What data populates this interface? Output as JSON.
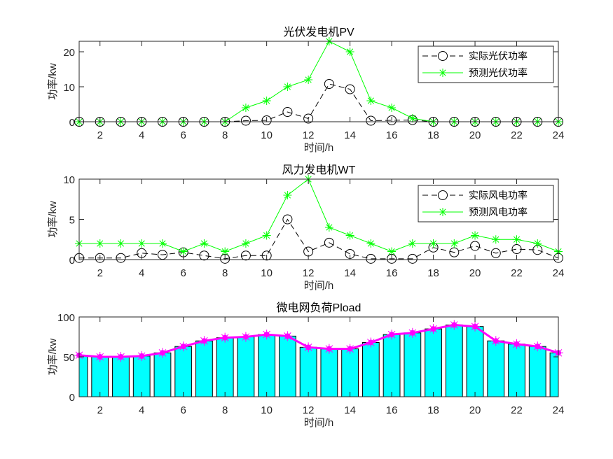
{
  "chart_data": [
    {
      "type": "line",
      "title": "光伏发电机PV",
      "xlabel": "时间/h",
      "ylabel": "功率/kw",
      "xlim": [
        1,
        24
      ],
      "ylim": [
        0,
        23
      ],
      "xticks": [
        2,
        4,
        6,
        8,
        10,
        12,
        14,
        16,
        18,
        20,
        22,
        24
      ],
      "yticks": [
        0,
        10,
        20
      ],
      "legend_position": "top-right",
      "x": [
        1,
        2,
        3,
        4,
        5,
        6,
        7,
        8,
        9,
        10,
        11,
        12,
        13,
        14,
        15,
        16,
        17,
        18,
        19,
        20,
        21,
        22,
        23,
        24
      ],
      "series": [
        {
          "name": "实际光伏功率",
          "style": "dashed-circle",
          "color": "#000000",
          "values": [
            0,
            0,
            0,
            0,
            0,
            0,
            0,
            0,
            0.3,
            0.4,
            2.8,
            0.9,
            10.8,
            9.3,
            0.3,
            0.4,
            0.5,
            0,
            0,
            0,
            0,
            0,
            0,
            0
          ]
        },
        {
          "name": "预测光伏功率",
          "style": "solid-star",
          "color": "#00ff00",
          "values": [
            0,
            0,
            0,
            0,
            0,
            0,
            0,
            0,
            4,
            6,
            10,
            12,
            23,
            20,
            6,
            4,
            1,
            0,
            0,
            0,
            0,
            0,
            0,
            0
          ]
        }
      ]
    },
    {
      "type": "line",
      "title": "风力发电机WT",
      "xlabel": "时间/h",
      "ylabel": "功率/kw",
      "xlim": [
        1,
        24
      ],
      "ylim": [
        0,
        10
      ],
      "xticks": [
        2,
        4,
        6,
        8,
        10,
        12,
        14,
        16,
        18,
        20,
        22,
        24
      ],
      "yticks": [
        0,
        5,
        10
      ],
      "legend_position": "top-right",
      "x": [
        1,
        2,
        3,
        4,
        5,
        6,
        7,
        8,
        9,
        10,
        11,
        12,
        13,
        14,
        15,
        16,
        17,
        18,
        19,
        20,
        21,
        22,
        23,
        24
      ],
      "series": [
        {
          "name": "实际风电功率",
          "style": "dashed-circle",
          "color": "#000000",
          "values": [
            0.2,
            0.2,
            0.2,
            0.8,
            0.6,
            0.9,
            0.5,
            0.1,
            0.5,
            0.5,
            5,
            1,
            2.1,
            0.7,
            0.1,
            0.1,
            0.1,
            1.5,
            0.9,
            1.7,
            0.8,
            1.3,
            1.2,
            0.2
          ]
        },
        {
          "name": "预测风电功率",
          "style": "solid-star",
          "color": "#00ff00",
          "values": [
            2,
            2,
            2,
            2,
            2,
            1,
            2,
            1,
            2,
            3,
            8,
            10,
            4,
            3,
            2,
            1,
            2,
            2,
            2,
            3,
            2.5,
            2.5,
            2,
            1
          ]
        }
      ]
    },
    {
      "type": "bar",
      "title": "微电网负荷Pload",
      "xlabel": "时间/h",
      "ylabel": "功率/kw",
      "xlim": [
        1,
        24
      ],
      "ylim": [
        0,
        100
      ],
      "xticks": [
        2,
        4,
        6,
        8,
        10,
        12,
        14,
        16,
        18,
        20,
        22,
        24
      ],
      "yticks": [
        0,
        50,
        100
      ],
      "x": [
        1,
        2,
        3,
        4,
        5,
        6,
        7,
        8,
        9,
        10,
        11,
        12,
        13,
        14,
        15,
        16,
        17,
        18,
        19,
        20,
        21,
        22,
        23,
        24
      ],
      "bar_color": "#00ffff",
      "line_color": "#ff00ff",
      "values": [
        52,
        50,
        50,
        51,
        55,
        63,
        70,
        74,
        75,
        78,
        76,
        62,
        60,
        60,
        68,
        78,
        80,
        85,
        90,
        88,
        70,
        66,
        63,
        55
      ]
    }
  ]
}
